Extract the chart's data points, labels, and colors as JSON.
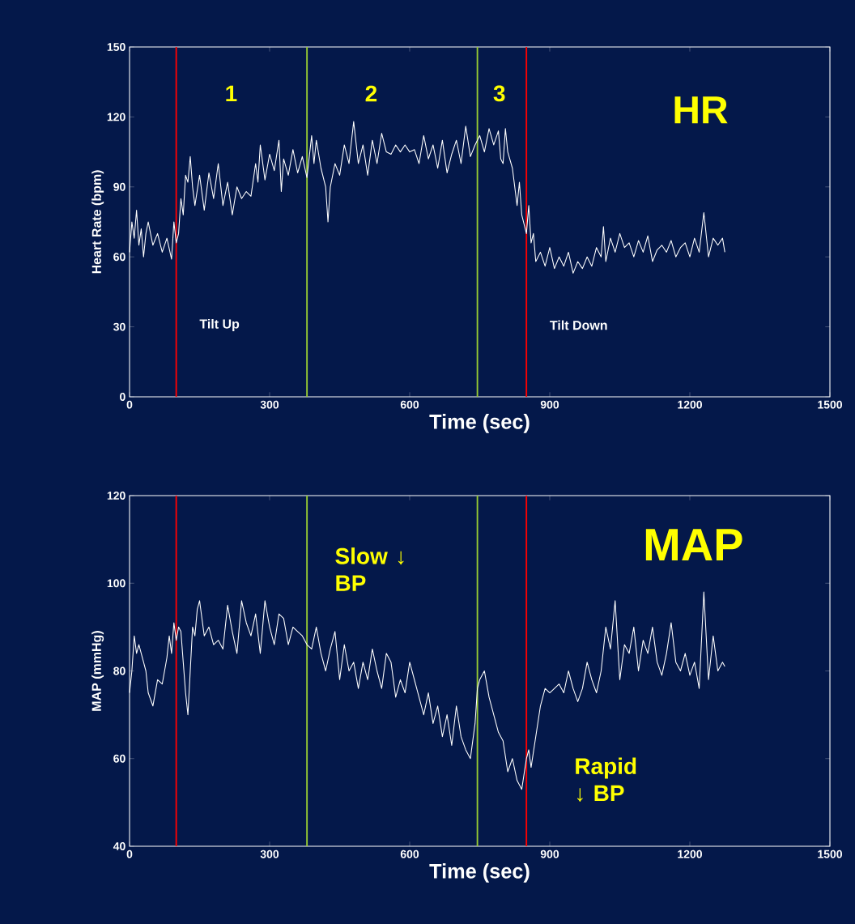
{
  "chart_data": [
    {
      "type": "line",
      "title": "HR",
      "xlabel": "Time (sec)",
      "ylabel": "Heart Rate (bpm)",
      "color": "#ffffff",
      "xlim": [
        0,
        1500
      ],
      "ylim": [
        0,
        150
      ],
      "xticks": [
        0,
        300,
        600,
        900,
        1200,
        1500
      ],
      "yticks": [
        0,
        30,
        60,
        90,
        120,
        150
      ],
      "x": [
        0,
        5,
        10,
        15,
        20,
        25,
        30,
        35,
        40,
        50,
        60,
        70,
        80,
        90,
        95,
        100,
        105,
        110,
        115,
        120,
        125,
        130,
        135,
        140,
        150,
        160,
        170,
        180,
        190,
        200,
        210,
        220,
        230,
        240,
        250,
        260,
        270,
        275,
        280,
        290,
        300,
        310,
        320,
        325,
        330,
        340,
        350,
        360,
        370,
        380,
        390,
        395,
        400,
        410,
        420,
        425,
        430,
        440,
        450,
        460,
        470,
        480,
        490,
        500,
        510,
        520,
        530,
        540,
        550,
        560,
        570,
        580,
        590,
        600,
        610,
        620,
        630,
        640,
        650,
        660,
        670,
        680,
        690,
        700,
        710,
        720,
        730,
        740,
        750,
        760,
        770,
        780,
        790,
        795,
        800,
        805,
        810,
        820,
        825,
        830,
        835,
        840,
        850,
        855,
        860,
        865,
        870,
        880,
        890,
        900,
        910,
        920,
        930,
        940,
        950,
        960,
        970,
        980,
        990,
        1000,
        1010,
        1015,
        1020,
        1030,
        1040,
        1050,
        1060,
        1070,
        1080,
        1090,
        1100,
        1110,
        1120,
        1130,
        1140,
        1150,
        1160,
        1170,
        1180,
        1190,
        1200,
        1210,
        1220,
        1230,
        1240,
        1250,
        1260,
        1270,
        1275
      ],
      "values": [
        62,
        75,
        68,
        80,
        65,
        72,
        60,
        70,
        75,
        65,
        70,
        62,
        68,
        59,
        75,
        66,
        70,
        85,
        78,
        95,
        92,
        103,
        90,
        82,
        95,
        80,
        96,
        85,
        100,
        82,
        92,
        78,
        90,
        85,
        88,
        86,
        100,
        92,
        108,
        93,
        104,
        97,
        110,
        88,
        102,
        95,
        106,
        96,
        103,
        94,
        112,
        100,
        110,
        98,
        90,
        75,
        90,
        100,
        95,
        108,
        100,
        118,
        100,
        108,
        95,
        110,
        100,
        113,
        105,
        104,
        108,
        105,
        108,
        105,
        106,
        100,
        112,
        102,
        108,
        98,
        110,
        96,
        104,
        110,
        100,
        116,
        103,
        108,
        112,
        105,
        115,
        108,
        114,
        102,
        100,
        115,
        105,
        98,
        90,
        82,
        92,
        78,
        70,
        82,
        66,
        70,
        58,
        62,
        56,
        64,
        55,
        60,
        56,
        62,
        53,
        58,
        55,
        60,
        56,
        64,
        60,
        73,
        58,
        68,
        62,
        70,
        64,
        66,
        60,
        67,
        62,
        69,
        58,
        63,
        65,
        62,
        67,
        60,
        64,
        66,
        60,
        68,
        62,
        79,
        60,
        68,
        65,
        68,
        62
      ],
      "ref_lines": [
        {
          "axis": "x",
          "value": 100,
          "label": "Tilt Up",
          "color": "#ff0000"
        },
        {
          "axis": "x",
          "value": 380,
          "color": "#99cc33"
        },
        {
          "axis": "x",
          "value": 745,
          "color": "#99cc33"
        },
        {
          "axis": "x",
          "value": 850,
          "label": "Tilt Down",
          "color": "#ff0000"
        }
      ],
      "annotations": [
        "1",
        "2",
        "3"
      ]
    },
    {
      "type": "line",
      "title": "MAP",
      "xlabel": "Time (sec)",
      "ylabel": "MAP (mmHg)",
      "color": "#ffffff",
      "xlim": [
        0,
        1500
      ],
      "ylim": [
        40,
        120
      ],
      "xticks": [
        0,
        300,
        600,
        900,
        1200,
        1500
      ],
      "yticks": [
        40,
        60,
        80,
        100,
        120
      ],
      "x": [
        0,
        5,
        10,
        15,
        20,
        30,
        35,
        40,
        50,
        60,
        70,
        80,
        85,
        90,
        95,
        100,
        105,
        110,
        115,
        120,
        125,
        130,
        135,
        140,
        145,
        150,
        155,
        160,
        170,
        180,
        190,
        200,
        210,
        220,
        230,
        240,
        250,
        260,
        270,
        280,
        290,
        300,
        310,
        320,
        330,
        340,
        350,
        360,
        370,
        380,
        390,
        400,
        410,
        420,
        430,
        440,
        450,
        460,
        470,
        480,
        490,
        500,
        510,
        520,
        530,
        540,
        550,
        560,
        570,
        580,
        590,
        600,
        610,
        620,
        630,
        640,
        650,
        660,
        670,
        680,
        690,
        700,
        710,
        720,
        730,
        740,
        745,
        750,
        760,
        770,
        780,
        790,
        800,
        810,
        820,
        830,
        840,
        850,
        855,
        860,
        870,
        880,
        890,
        900,
        910,
        920,
        930,
        940,
        950,
        960,
        970,
        980,
        990,
        1000,
        1010,
        1020,
        1030,
        1040,
        1050,
        1060,
        1070,
        1080,
        1090,
        1100,
        1110,
        1120,
        1130,
        1140,
        1150,
        1160,
        1170,
        1180,
        1190,
        1200,
        1210,
        1220,
        1230,
        1240,
        1250,
        1260,
        1270,
        1275
      ],
      "values": [
        75,
        80,
        88,
        84,
        86,
        82,
        80,
        75,
        72,
        78,
        77,
        83,
        88,
        84,
        91,
        87,
        90,
        89,
        82,
        75,
        70,
        80,
        90,
        88,
        94,
        96,
        92,
        88,
        90,
        86,
        87,
        85,
        95,
        89,
        84,
        96,
        91,
        88,
        93,
        84,
        96,
        90,
        86,
        93,
        92,
        86,
        90,
        89,
        88,
        86,
        85,
        90,
        84,
        80,
        85,
        89,
        78,
        86,
        80,
        82,
        76,
        82,
        78,
        85,
        80,
        76,
        84,
        82,
        74,
        78,
        75,
        82,
        78,
        74,
        70,
        75,
        68,
        72,
        65,
        70,
        63,
        72,
        65,
        62,
        60,
        68,
        76,
        78,
        80,
        74,
        70,
        66,
        64,
        57,
        60,
        55,
        53,
        60,
        62,
        58,
        65,
        72,
        76,
        75,
        76,
        77,
        75,
        80,
        76,
        73,
        76,
        82,
        78,
        75,
        80,
        90,
        85,
        96,
        78,
        86,
        84,
        90,
        80,
        87,
        84,
        90,
        82,
        79,
        84,
        91,
        82,
        80,
        84,
        79,
        82,
        76,
        98,
        78,
        88,
        80,
        82,
        81
      ],
      "ref_lines": [
        {
          "axis": "x",
          "value": 100,
          "color": "#ff0000"
        },
        {
          "axis": "x",
          "value": 380,
          "color": "#99cc33"
        },
        {
          "axis": "x",
          "value": 745,
          "color": "#99cc33"
        },
        {
          "axis": "x",
          "value": 850,
          "color": "#ff0000"
        }
      ],
      "annotations": [
        "Slow ↓ BP",
        "Rapid ↓ BP"
      ]
    }
  ]
}
